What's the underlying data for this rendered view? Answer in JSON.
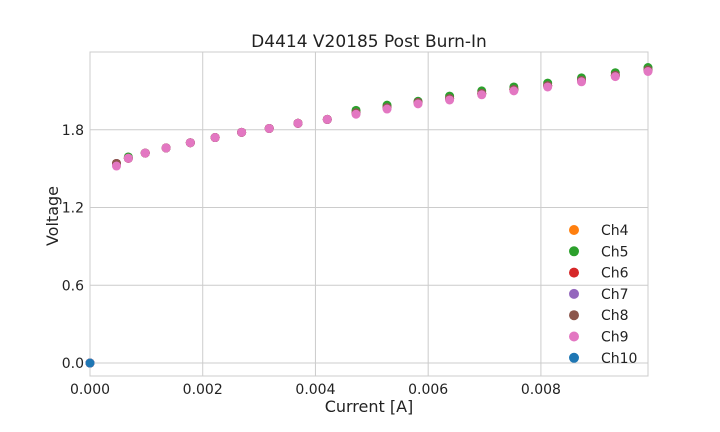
{
  "chart_data": {
    "type": "scatter",
    "title": "D4414 V20185 Post Burn-In",
    "xlabel": "Current [A]",
    "ylabel": "Voltage",
    "xlim": [
      0,
      0.0099
    ],
    "ylim": [
      -0.1,
      2.4
    ],
    "xticks": [
      "0.000",
      "0.002",
      "0.004",
      "0.006",
      "0.008"
    ],
    "xtick_values": [
      0,
      0.002,
      0.004,
      0.006,
      0.008
    ],
    "yticks": [
      "0.0",
      "0.6",
      "1.2",
      "1.8"
    ],
    "ytick_values": [
      0,
      0.6,
      1.2,
      1.8
    ],
    "grid": true,
    "legend_position": "lower-right",
    "series": [
      {
        "name": "Ch4",
        "color": "#ff7f0e",
        "x": [
          0,
          0.00047,
          0.00068,
          0.00098,
          0.00135,
          0.00178,
          0.00222,
          0.00269,
          0.00318,
          0.00369,
          0.00421,
          0.00472,
          0.00527,
          0.00582,
          0.00638,
          0.00695,
          0.00752,
          0.00812,
          0.00872,
          0.00932,
          0.0099
        ],
        "y": [
          0,
          1.54,
          1.58,
          1.62,
          1.66,
          1.7,
          1.74,
          1.78,
          1.81,
          1.85,
          1.88,
          1.93,
          1.97,
          2.01,
          2.04,
          2.08,
          2.11,
          2.14,
          2.18,
          2.22,
          2.26
        ]
      },
      {
        "name": "Ch5",
        "color": "#2ca02c",
        "x": [
          0,
          0.00047,
          0.00068,
          0.00098,
          0.00135,
          0.00178,
          0.00222,
          0.00269,
          0.00318,
          0.00369,
          0.00421,
          0.00472,
          0.00527,
          0.00582,
          0.00638,
          0.00695,
          0.00752,
          0.00812,
          0.00872,
          0.00932,
          0.0099
        ],
        "y": [
          0,
          1.54,
          1.59,
          1.62,
          1.66,
          1.7,
          1.74,
          1.78,
          1.81,
          1.85,
          1.88,
          1.95,
          1.99,
          2.02,
          2.06,
          2.1,
          2.13,
          2.16,
          2.2,
          2.24,
          2.28
        ]
      },
      {
        "name": "Ch6",
        "color": "#d62728",
        "x": [
          0,
          0.00047,
          0.00068,
          0.00098,
          0.00135,
          0.00178,
          0.00222,
          0.00269,
          0.00318,
          0.00369,
          0.00421,
          0.00472,
          0.00527,
          0.00582,
          0.00638,
          0.00695,
          0.00752,
          0.00812,
          0.00872,
          0.00932,
          0.0099
        ],
        "y": [
          0,
          1.54,
          1.58,
          1.62,
          1.66,
          1.7,
          1.74,
          1.78,
          1.81,
          1.85,
          1.88,
          1.93,
          1.97,
          2.01,
          2.04,
          2.08,
          2.11,
          2.14,
          2.18,
          2.22,
          2.26
        ]
      },
      {
        "name": "Ch7",
        "color": "#9467bd",
        "x": [
          0,
          0.00047,
          0.00068,
          0.00098,
          0.00135,
          0.00178,
          0.00222,
          0.00269,
          0.00318,
          0.00369,
          0.00421,
          0.00472,
          0.00527,
          0.00582,
          0.00638,
          0.00695,
          0.00752,
          0.00812,
          0.00872,
          0.00932,
          0.0099
        ],
        "y": [
          0,
          1.54,
          1.58,
          1.62,
          1.66,
          1.7,
          1.74,
          1.78,
          1.81,
          1.85,
          1.88,
          1.93,
          1.97,
          2.01,
          2.04,
          2.08,
          2.11,
          2.14,
          2.18,
          2.22,
          2.26
        ]
      },
      {
        "name": "Ch8",
        "color": "#8c564b",
        "x": [
          0,
          0.00047,
          0.00068,
          0.00098,
          0.00135,
          0.00178,
          0.00222,
          0.00269,
          0.00318,
          0.00369,
          0.00421,
          0.00472,
          0.00527,
          0.00582,
          0.00638,
          0.00695,
          0.00752,
          0.00812,
          0.00872,
          0.00932,
          0.0099
        ],
        "y": [
          0,
          1.54,
          1.58,
          1.62,
          1.66,
          1.7,
          1.74,
          1.78,
          1.81,
          1.85,
          1.88,
          1.93,
          1.97,
          2.01,
          2.04,
          2.08,
          2.11,
          2.14,
          2.18,
          2.22,
          2.26
        ]
      },
      {
        "name": "Ch9",
        "color": "#e377c2",
        "x": [
          0,
          0.00047,
          0.00068,
          0.00098,
          0.00135,
          0.00178,
          0.00222,
          0.00269,
          0.00318,
          0.00369,
          0.00421,
          0.00472,
          0.00527,
          0.00582,
          0.00638,
          0.00695,
          0.00752,
          0.00812,
          0.00872,
          0.00932,
          0.0099
        ],
        "y": [
          0,
          1.52,
          1.58,
          1.62,
          1.66,
          1.7,
          1.74,
          1.78,
          1.81,
          1.85,
          1.88,
          1.92,
          1.96,
          2.0,
          2.03,
          2.07,
          2.1,
          2.13,
          2.17,
          2.21,
          2.25
        ]
      },
      {
        "name": "Ch10",
        "color": "#1f77b4",
        "x": [
          0
        ],
        "y": [
          0
        ]
      }
    ]
  }
}
